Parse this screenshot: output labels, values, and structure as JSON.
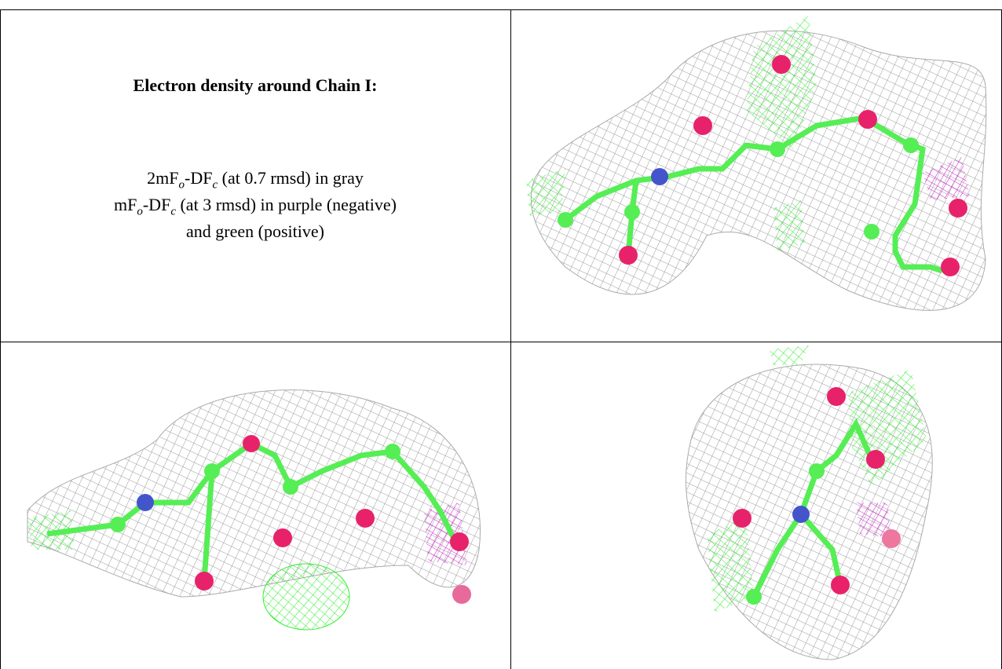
{
  "caption": {
    "title": "Electron density around Chain I:",
    "lines": [
      [
        "2mF",
        "o",
        "-DF",
        "c",
        " (at 0.7 rmsd) in gray"
      ],
      [
        "mF",
        "o",
        "-DF",
        "c",
        " (at 3 rmsd) in purple (negative)"
      ],
      [
        "and green (positive)"
      ]
    ]
  }
}
